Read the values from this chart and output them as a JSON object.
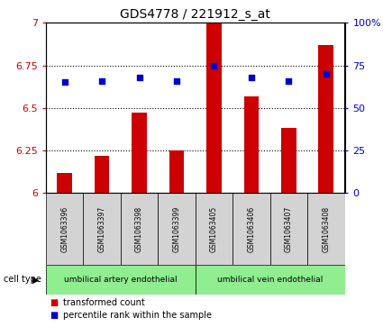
{
  "title": "GDS4778 / 221912_s_at",
  "samples": [
    "GSM1063396",
    "GSM1063397",
    "GSM1063398",
    "GSM1063399",
    "GSM1063405",
    "GSM1063406",
    "GSM1063407",
    "GSM1063408"
  ],
  "transformed_count": [
    6.12,
    6.22,
    6.47,
    6.25,
    7.0,
    6.57,
    6.38,
    6.87
  ],
  "percentile_rank": [
    65,
    66,
    68,
    66,
    75,
    68,
    66,
    70
  ],
  "ylim_left": [
    6.0,
    7.0
  ],
  "ylim_right": [
    0,
    100
  ],
  "yticks_left": [
    6.0,
    6.25,
    6.5,
    6.75,
    7.0
  ],
  "yticks_right": [
    0,
    25,
    50,
    75,
    100
  ],
  "bar_color": "#cc0000",
  "dot_color": "#0000cc",
  "group1_label": "umbilical artery endothelial",
  "group2_label": "umbilical vein endothelial",
  "group1_indices": [
    0,
    1,
    2,
    3
  ],
  "group2_indices": [
    4,
    5,
    6,
    7
  ],
  "cell_type_label": "cell type",
  "legend_bar": "transformed count",
  "legend_dot": "percentile rank within the sample",
  "group_bg_color": "#90ee90",
  "sample_bg_color": "#d3d3d3",
  "bar_width": 0.4
}
